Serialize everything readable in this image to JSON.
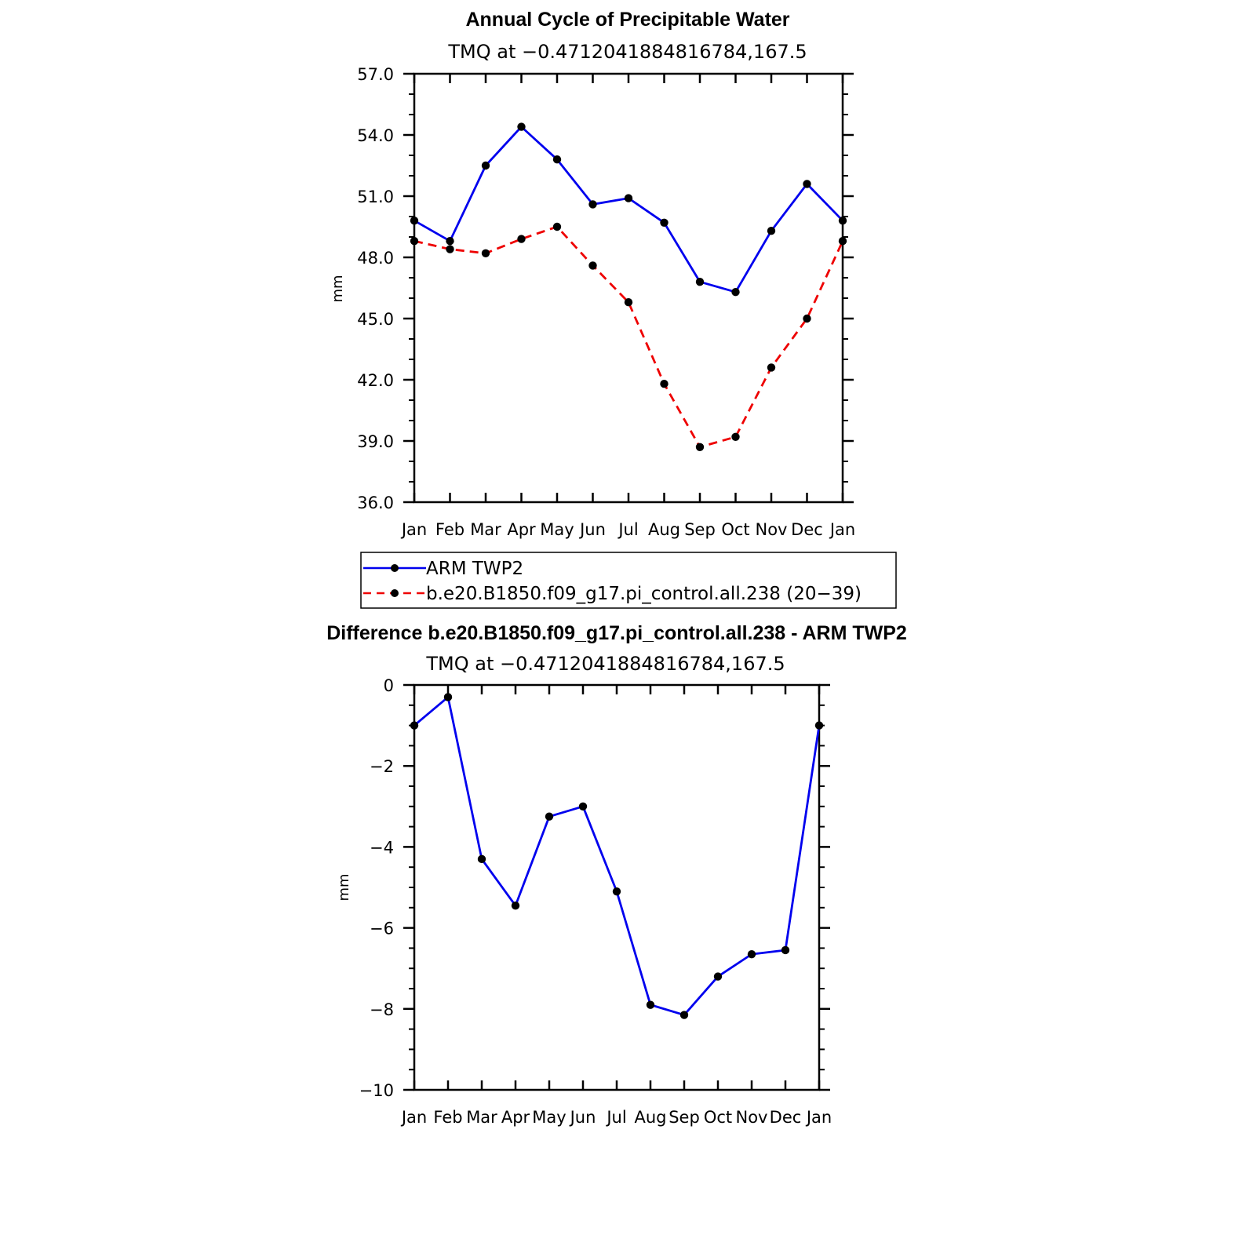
{
  "chart_data": [
    {
      "type": "line",
      "title": "Annual Cycle of Precipitable Water",
      "subtitle": "TMQ at −0.4712041884816784,167.5",
      "ylabel": "mm",
      "categories": [
        "Jan",
        "Feb",
        "Mar",
        "Apr",
        "May",
        "Jun",
        "Jul",
        "Aug",
        "Sep",
        "Oct",
        "Nov",
        "Dec",
        "Jan"
      ],
      "ylim": [
        36.0,
        57.0
      ],
      "yticks": [
        "36.0",
        "39.0",
        "42.0",
        "45.0",
        "48.0",
        "51.0",
        "54.0",
        "57.0"
      ],
      "legend_position": "bottom",
      "series": [
        {
          "name": "ARM TWP2",
          "color": "#0000ee",
          "style": "solid",
          "values": [
            49.8,
            48.8,
            52.5,
            54.4,
            52.8,
            50.6,
            50.9,
            49.7,
            46.8,
            46.3,
            49.3,
            51.6,
            49.8
          ]
        },
        {
          "name": "b.e20.B1850.f09_g17.pi_control.all.238 (20−39)",
          "color": "#ee0000",
          "style": "dashed",
          "values": [
            48.8,
            48.4,
            48.2,
            48.9,
            49.5,
            47.6,
            45.8,
            41.8,
            38.7,
            39.2,
            42.6,
            45.0,
            48.8
          ]
        }
      ]
    },
    {
      "type": "line",
      "title": "Difference b.e20.B1850.f09_g17.pi_control.all.238 - ARM TWP2",
      "subtitle": "TMQ at −0.4712041884816784,167.5",
      "ylabel": "mm",
      "categories": [
        "Jan",
        "Feb",
        "Mar",
        "Apr",
        "May",
        "Jun",
        "Jul",
        "Aug",
        "Sep",
        "Oct",
        "Nov",
        "Dec",
        "Jan"
      ],
      "ylim": [
        -10,
        0
      ],
      "yticks": [
        "−10",
        "−8",
        "−6",
        "−4",
        "−2",
        "0"
      ],
      "series": [
        {
          "color": "#0000ee",
          "style": "solid",
          "values": [
            -1.0,
            -0.3,
            -4.3,
            -5.45,
            -3.25,
            -3.0,
            -5.1,
            -7.9,
            -8.15,
            -7.2,
            -6.65,
            -6.55,
            -1.0
          ]
        }
      ]
    }
  ]
}
